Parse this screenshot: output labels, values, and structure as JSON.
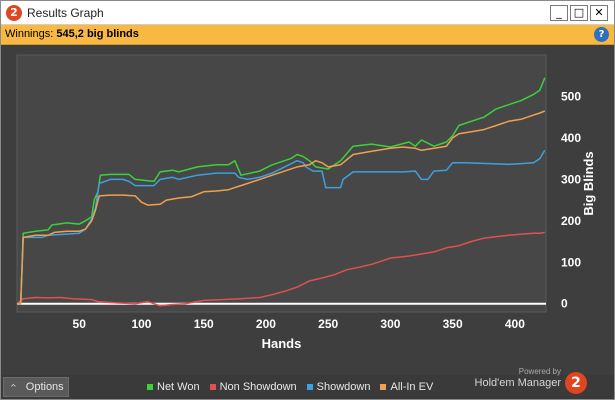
{
  "window": {
    "title": "Results Graph",
    "app_icon_glyph": "2",
    "minimize_glyph": "_",
    "maximize_glyph": "□",
    "close_glyph": "✕"
  },
  "infobar": {
    "label": "Winnings:",
    "value": "545,2 big blinds",
    "help_glyph": "?"
  },
  "footer": {
    "options_label": "Options",
    "options_caret": "^",
    "powered_by": "Powered by",
    "brand_name": "Hold'em Manager",
    "brand_logo_glyph": "2"
  },
  "chart_data": {
    "type": "line",
    "xlabel": "Hands",
    "ylabel": "Big Blinds",
    "xlim": [
      0,
      425
    ],
    "ylim": [
      -20,
      600
    ],
    "x_ticks": [
      50,
      100,
      150,
      200,
      250,
      300,
      350,
      400
    ],
    "y_ticks": [
      0,
      100,
      200,
      300,
      400,
      500
    ],
    "legend_position": "bottom",
    "grid": false,
    "series": [
      {
        "name": "Net Won",
        "color": "#3bd13b",
        "points": [
          [
            0,
            0
          ],
          [
            3,
            0
          ],
          [
            5,
            170
          ],
          [
            15,
            175
          ],
          [
            25,
            178
          ],
          [
            28,
            190
          ],
          [
            40,
            195
          ],
          [
            50,
            192
          ],
          [
            55,
            200
          ],
          [
            60,
            210
          ],
          [
            62,
            250
          ],
          [
            65,
            270
          ],
          [
            67,
            310
          ],
          [
            75,
            312
          ],
          [
            90,
            312
          ],
          [
            95,
            300
          ],
          [
            110,
            295
          ],
          [
            115,
            318
          ],
          [
            125,
            322
          ],
          [
            130,
            318
          ],
          [
            145,
            330
          ],
          [
            160,
            335
          ],
          [
            170,
            335
          ],
          [
            175,
            345
          ],
          [
            180,
            310
          ],
          [
            195,
            320
          ],
          [
            205,
            335
          ],
          [
            220,
            350
          ],
          [
            225,
            360
          ],
          [
            230,
            355
          ],
          [
            235,
            345
          ],
          [
            240,
            330
          ],
          [
            250,
            325
          ],
          [
            260,
            345
          ],
          [
            270,
            380
          ],
          [
            285,
            385
          ],
          [
            300,
            378
          ],
          [
            315,
            390
          ],
          [
            320,
            380
          ],
          [
            325,
            395
          ],
          [
            335,
            380
          ],
          [
            345,
            390
          ],
          [
            350,
            405
          ],
          [
            355,
            430
          ],
          [
            365,
            440
          ],
          [
            375,
            450
          ],
          [
            385,
            470
          ],
          [
            395,
            480
          ],
          [
            405,
            490
          ],
          [
            415,
            505
          ],
          [
            420,
            515
          ],
          [
            422,
            530
          ],
          [
            424,
            545
          ]
        ]
      },
      {
        "name": "Non Showdown",
        "color": "#e05050",
        "points": [
          [
            0,
            0
          ],
          [
            5,
            12
          ],
          [
            15,
            15
          ],
          [
            25,
            14
          ],
          [
            35,
            15
          ],
          [
            45,
            12
          ],
          [
            60,
            10
          ],
          [
            65,
            5
          ],
          [
            80,
            2
          ],
          [
            95,
            0
          ],
          [
            105,
            5
          ],
          [
            110,
            0
          ],
          [
            115,
            -5
          ],
          [
            125,
            -2
          ],
          [
            135,
            0
          ],
          [
            150,
            8
          ],
          [
            165,
            10
          ],
          [
            180,
            12
          ],
          [
            195,
            15
          ],
          [
            205,
            22
          ],
          [
            215,
            30
          ],
          [
            225,
            40
          ],
          [
            235,
            55
          ],
          [
            245,
            62
          ],
          [
            255,
            70
          ],
          [
            265,
            82
          ],
          [
            275,
            88
          ],
          [
            285,
            95
          ],
          [
            300,
            110
          ],
          [
            315,
            115
          ],
          [
            325,
            120
          ],
          [
            335,
            125
          ],
          [
            345,
            135
          ],
          [
            355,
            140
          ],
          [
            365,
            150
          ],
          [
            375,
            158
          ],
          [
            385,
            162
          ],
          [
            395,
            165
          ],
          [
            405,
            168
          ],
          [
            415,
            170
          ],
          [
            420,
            170
          ],
          [
            424,
            172
          ]
        ]
      },
      {
        "name": "Showdown",
        "color": "#3ea0e0",
        "points": [
          [
            0,
            0
          ],
          [
            3,
            0
          ],
          [
            5,
            160
          ],
          [
            20,
            160
          ],
          [
            25,
            165
          ],
          [
            40,
            168
          ],
          [
            50,
            170
          ],
          [
            55,
            180
          ],
          [
            60,
            205
          ],
          [
            63,
            230
          ],
          [
            66,
            290
          ],
          [
            75,
            300
          ],
          [
            85,
            300
          ],
          [
            90,
            295
          ],
          [
            95,
            285
          ],
          [
            110,
            285
          ],
          [
            115,
            300
          ],
          [
            125,
            305
          ],
          [
            130,
            300
          ],
          [
            145,
            310
          ],
          [
            160,
            315
          ],
          [
            175,
            315
          ],
          [
            178,
            305
          ],
          [
            185,
            300
          ],
          [
            195,
            305
          ],
          [
            205,
            315
          ],
          [
            215,
            330
          ],
          [
            225,
            345
          ],
          [
            230,
            340
          ],
          [
            232,
            330
          ],
          [
            238,
            320
          ],
          [
            245,
            320
          ],
          [
            248,
            280
          ],
          [
            260,
            280
          ],
          [
            262,
            300
          ],
          [
            270,
            318
          ],
          [
            285,
            318
          ],
          [
            300,
            318
          ],
          [
            310,
            318
          ],
          [
            320,
            320
          ],
          [
            325,
            300
          ],
          [
            330,
            300
          ],
          [
            335,
            320
          ],
          [
            345,
            322
          ],
          [
            350,
            340
          ],
          [
            360,
            340
          ],
          [
            380,
            338
          ],
          [
            395,
            336
          ],
          [
            405,
            338
          ],
          [
            415,
            340
          ],
          [
            420,
            350
          ],
          [
            424,
            370
          ]
        ]
      },
      {
        "name": "All-In EV",
        "color": "#f0a050",
        "points": [
          [
            0,
            0
          ],
          [
            3,
            0
          ],
          [
            5,
            160
          ],
          [
            15,
            165
          ],
          [
            25,
            165
          ],
          [
            30,
            172
          ],
          [
            40,
            175
          ],
          [
            50,
            175
          ],
          [
            55,
            180
          ],
          [
            60,
            200
          ],
          [
            63,
            225
          ],
          [
            66,
            260
          ],
          [
            75,
            262
          ],
          [
            85,
            262
          ],
          [
            95,
            260
          ],
          [
            100,
            245
          ],
          [
            105,
            238
          ],
          [
            115,
            240
          ],
          [
            120,
            250
          ],
          [
            130,
            255
          ],
          [
            140,
            258
          ],
          [
            150,
            270
          ],
          [
            160,
            272
          ],
          [
            170,
            275
          ],
          [
            175,
            280
          ],
          [
            180,
            285
          ],
          [
            195,
            300
          ],
          [
            205,
            310
          ],
          [
            215,
            320
          ],
          [
            225,
            330
          ],
          [
            235,
            335
          ],
          [
            240,
            345
          ],
          [
            245,
            340
          ],
          [
            250,
            330
          ],
          [
            260,
            335
          ],
          [
            270,
            360
          ],
          [
            285,
            368
          ],
          [
            300,
            375
          ],
          [
            310,
            378
          ],
          [
            320,
            375
          ],
          [
            325,
            370
          ],
          [
            335,
            375
          ],
          [
            345,
            380
          ],
          [
            350,
            400
          ],
          [
            355,
            410
          ],
          [
            365,
            415
          ],
          [
            375,
            420
          ],
          [
            385,
            430
          ],
          [
            395,
            440
          ],
          [
            405,
            445
          ],
          [
            415,
            455
          ],
          [
            420,
            460
          ],
          [
            424,
            465
          ]
        ]
      }
    ]
  }
}
